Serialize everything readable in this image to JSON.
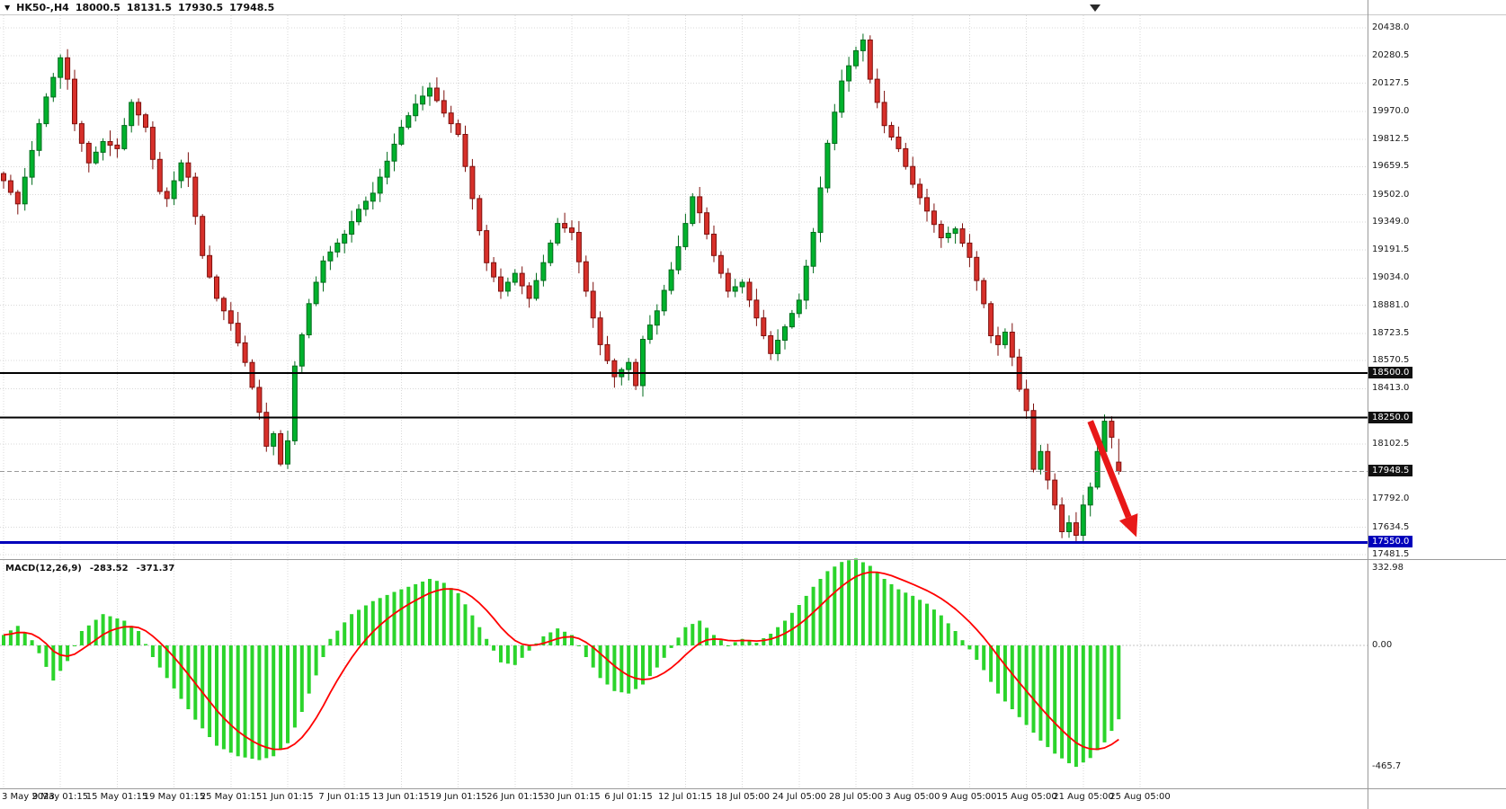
{
  "header": {
    "symbol_label": "HK50-,H4",
    "open": "18000.5",
    "high": "18131.5",
    "low": "17930.5",
    "close": "17948.5"
  },
  "macd_header": {
    "title": "MACD(12,26,9)",
    "value": "-283.52",
    "signal": "-371.37"
  },
  "colors": {
    "grid": "#d8d8d8",
    "bull_fill": "#00b22d",
    "bull_stroke": "#006b1b",
    "bear_fill": "#d7302a",
    "bear_stroke": "#7d100d",
    "macd_bar": "#2bd42b",
    "macd_signal": "#ff0000",
    "bid_line": "#9a9a9a",
    "separator": "#9a9a9a",
    "top_border": "#c8c8c8",
    "arrow": "#e81818",
    "badge_dark": "#111111",
    "badge_blue": "#0000bb",
    "hline_black": "#000000",
    "hline_blue": "#0000bb"
  },
  "chart_data": {
    "type": "candlestick",
    "symbol": "HK50-",
    "timeframe": "H4",
    "last_candle": {
      "open": 18000.5,
      "high": 18131.5,
      "low": 17930.5,
      "close": 17948.5
    },
    "bid_price": 17948.5,
    "price_axis_ticks": [
      20438.0,
      20280.5,
      20127.5,
      19970.0,
      19812.5,
      19659.5,
      19502.0,
      19349.0,
      19191.5,
      19034.0,
      18881.0,
      18723.5,
      18570.5,
      18413.0,
      18102.5,
      17792.0,
      17634.5,
      17481.5
    ],
    "price_badges": [
      {
        "label": "18500.0",
        "price": 18500.0,
        "bg": "#111111"
      },
      {
        "label": "18250.0",
        "price": 18250.0,
        "bg": "#111111"
      },
      {
        "label": "17948.5",
        "price": 17948.5,
        "bg": "#111111"
      },
      {
        "label": "17550.0",
        "price": 17550.0,
        "bg": "#0000bb"
      }
    ],
    "hlines": [
      {
        "price": 18500.0,
        "color": "#000000",
        "width": 2
      },
      {
        "price": 18250.0,
        "color": "#000000",
        "width": 2
      },
      {
        "price": 17550.0,
        "color": "#0000bb",
        "width": 3
      }
    ],
    "x_labels": [
      {
        "i": 0,
        "t": "3 May 2023"
      },
      {
        "i": 8,
        "t": "9 May 01:15"
      },
      {
        "i": 16,
        "t": "15 May 01:15"
      },
      {
        "i": 24,
        "t": "19 May 01:15"
      },
      {
        "i": 32,
        "t": "25 May 01:15"
      },
      {
        "i": 40,
        "t": "1 Jun 01:15"
      },
      {
        "i": 48,
        "t": "7 Jun 01:15"
      },
      {
        "i": 56,
        "t": "13 Jun 01:15"
      },
      {
        "i": 64,
        "t": "19 Jun 01:15"
      },
      {
        "i": 72,
        "t": "26 Jun 01:15"
      },
      {
        "i": 80,
        "t": "30 Jun 01:15"
      },
      {
        "i": 88,
        "t": "6 Jul 01:15"
      },
      {
        "i": 96,
        "t": "12 Jul 01:15"
      },
      {
        "i": 104,
        "t": "18 Jul 05:00"
      },
      {
        "i": 112,
        "t": "24 Jul 05:00"
      },
      {
        "i": 120,
        "t": "28 Jul 05:00"
      },
      {
        "i": 128,
        "t": "3 Aug 05:00"
      },
      {
        "i": 136,
        "t": "9 Aug 05:00"
      },
      {
        "i": 144,
        "t": "15 Aug 05:00"
      },
      {
        "i": 152,
        "t": "21 Aug 05:00"
      },
      {
        "i": 160,
        "t": "25 Aug 05:00"
      }
    ],
    "close_anchors": [
      [
        0,
        19580
      ],
      [
        2,
        19450
      ],
      [
        4,
        19750
      ],
      [
        6,
        20050
      ],
      [
        8,
        20270
      ],
      [
        9,
        20150
      ],
      [
        10,
        19900
      ],
      [
        12,
        19680
      ],
      [
        14,
        19800
      ],
      [
        16,
        19760
      ],
      [
        18,
        20020
      ],
      [
        20,
        19880
      ],
      [
        22,
        19520
      ],
      [
        23,
        19480
      ],
      [
        25,
        19680
      ],
      [
        26,
        19600
      ],
      [
        28,
        19160
      ],
      [
        30,
        18920
      ],
      [
        32,
        18780
      ],
      [
        34,
        18560
      ],
      [
        36,
        18280
      ],
      [
        37,
        18090
      ],
      [
        38,
        18160
      ],
      [
        39,
        17990
      ],
      [
        40,
        18120
      ],
      [
        41,
        18540
      ],
      [
        43,
        18890
      ],
      [
        45,
        19130
      ],
      [
        48,
        19280
      ],
      [
        50,
        19420
      ],
      [
        52,
        19510
      ],
      [
        54,
        19690
      ],
      [
        56,
        19880
      ],
      [
        58,
        20010
      ],
      [
        60,
        20100
      ],
      [
        62,
        19960
      ],
      [
        64,
        19840
      ],
      [
        66,
        19480
      ],
      [
        68,
        19120
      ],
      [
        70,
        18960
      ],
      [
        72,
        19060
      ],
      [
        74,
        18920
      ],
      [
        76,
        19120
      ],
      [
        78,
        19340
      ],
      [
        80,
        19290
      ],
      [
        82,
        18960
      ],
      [
        84,
        18660
      ],
      [
        86,
        18480
      ],
      [
        88,
        18560
      ],
      [
        89,
        18430
      ],
      [
        90,
        18690
      ],
      [
        92,
        18850
      ],
      [
        94,
        19080
      ],
      [
        96,
        19340
      ],
      [
        97,
        19490
      ],
      [
        98,
        19400
      ],
      [
        100,
        19160
      ],
      [
        102,
        18960
      ],
      [
        104,
        19010
      ],
      [
        106,
        18810
      ],
      [
        108,
        18610
      ],
      [
        110,
        18760
      ],
      [
        112,
        18910
      ],
      [
        114,
        19290
      ],
      [
        116,
        19790
      ],
      [
        118,
        20140
      ],
      [
        120,
        20310
      ],
      [
        121,
        20370
      ],
      [
        122,
        20150
      ],
      [
        124,
        19890
      ],
      [
        126,
        19760
      ],
      [
        128,
        19560
      ],
      [
        130,
        19410
      ],
      [
        132,
        19260
      ],
      [
        134,
        19310
      ],
      [
        136,
        19150
      ],
      [
        138,
        18890
      ],
      [
        139,
        18710
      ],
      [
        140,
        18660
      ],
      [
        141,
        18730
      ],
      [
        142,
        18590
      ],
      [
        143,
        18410
      ],
      [
        144,
        18290
      ],
      [
        145,
        17960
      ],
      [
        146,
        18060
      ],
      [
        147,
        17900
      ],
      [
        148,
        17760
      ],
      [
        149,
        17610
      ],
      [
        150,
        17660
      ],
      [
        151,
        17590
      ],
      [
        152,
        17760
      ],
      [
        153,
        17860
      ],
      [
        154,
        18060
      ],
      [
        155,
        18230
      ],
      [
        156,
        18140
      ],
      [
        157,
        17948.5
      ]
    ],
    "macd": {
      "title": "MACD(12,26,9)",
      "value": -283.52,
      "signal": -371.37,
      "axis_labels": [
        {
          "v": 332.98,
          "t": "332.98"
        },
        {
          "v": 0.0,
          "t": "0.00"
        },
        {
          "v": -465.7,
          "t": "-465.7"
        }
      ],
      "anchors": [
        [
          0,
          40
        ],
        [
          2,
          75
        ],
        [
          4,
          20
        ],
        [
          5,
          -30
        ],
        [
          7,
          -135
        ],
        [
          9,
          -60
        ],
        [
          11,
          55
        ],
        [
          14,
          120
        ],
        [
          17,
          95
        ],
        [
          19,
          55
        ],
        [
          21,
          -45
        ],
        [
          24,
          -165
        ],
        [
          27,
          -285
        ],
        [
          30,
          -385
        ],
        [
          33,
          -425
        ],
        [
          36,
          -440
        ],
        [
          38,
          -425
        ],
        [
          40,
          -375
        ],
        [
          42,
          -255
        ],
        [
          44,
          -115
        ],
        [
          46,
          25
        ],
        [
          49,
          120
        ],
        [
          52,
          170
        ],
        [
          55,
          205
        ],
        [
          58,
          235
        ],
        [
          60,
          255
        ],
        [
          62,
          240
        ],
        [
          64,
          200
        ],
        [
          66,
          115
        ],
        [
          68,
          25
        ],
        [
          70,
          -65
        ],
        [
          72,
          -75
        ],
        [
          74,
          -20
        ],
        [
          76,
          35
        ],
        [
          78,
          65
        ],
        [
          80,
          40
        ],
        [
          82,
          -45
        ],
        [
          84,
          -125
        ],
        [
          86,
          -175
        ],
        [
          88,
          -185
        ],
        [
          90,
          -150
        ],
        [
          92,
          -85
        ],
        [
          94,
          -10
        ],
        [
          96,
          70
        ],
        [
          98,
          95
        ],
        [
          100,
          40
        ],
        [
          102,
          0
        ],
        [
          104,
          25
        ],
        [
          106,
          10
        ],
        [
          108,
          45
        ],
        [
          110,
          95
        ],
        [
          112,
          155
        ],
        [
          114,
          225
        ],
        [
          116,
          285
        ],
        [
          118,
          320
        ],
        [
          120,
          332.98
        ],
        [
          122,
          305
        ],
        [
          124,
          255
        ],
        [
          126,
          215
        ],
        [
          128,
          190
        ],
        [
          130,
          160
        ],
        [
          132,
          115
        ],
        [
          134,
          55
        ],
        [
          136,
          -15
        ],
        [
          138,
          -95
        ],
        [
          140,
          -185
        ],
        [
          142,
          -245
        ],
        [
          144,
          -305
        ],
        [
          146,
          -365
        ],
        [
          148,
          -415
        ],
        [
          150,
          -452
        ],
        [
          151,
          -465.7
        ],
        [
          153,
          -432
        ],
        [
          155,
          -372
        ],
        [
          157,
          -283.52
        ]
      ]
    },
    "arrow": {
      "from_i": 153,
      "from_price": 18230,
      "to_i": 159.5,
      "to_price": 17580
    }
  }
}
